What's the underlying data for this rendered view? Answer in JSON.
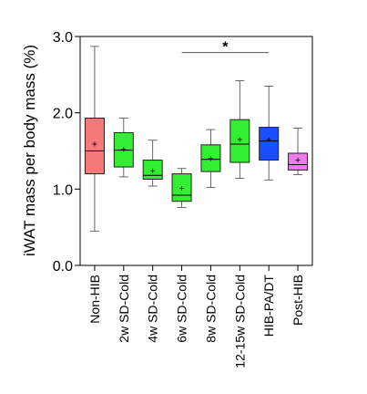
{
  "chart_data": {
    "type": "boxplot",
    "ylabel": "iWAT mass per body mass (%)",
    "ylim": [
      0.0,
      3.0
    ],
    "yticks": [
      "0.0",
      "1.0",
      "2.0",
      "3.0"
    ],
    "categories": [
      "Non-HIB",
      "2w SD-Cold",
      "4w SD-Cold",
      "6w SD-Cold",
      "8w SD-Cold",
      "12-15w SD-Cold",
      "HIB-PA/DT",
      "Post-HIB"
    ],
    "boxes": [
      {
        "min": 0.45,
        "q1": 1.2,
        "median": 1.5,
        "q3": 1.93,
        "max": 2.87,
        "mean": 1.59,
        "color": "#f47a7a"
      },
      {
        "min": 1.16,
        "q1": 1.29,
        "median": 1.51,
        "q3": 1.74,
        "max": 1.93,
        "mean": 1.52,
        "color": "#33ee33"
      },
      {
        "min": 1.04,
        "q1": 1.13,
        "median": 1.18,
        "q3": 1.38,
        "max": 1.64,
        "mean": 1.24,
        "color": "#33ee33"
      },
      {
        "min": 0.76,
        "q1": 0.84,
        "median": 0.92,
        "q3": 1.2,
        "max": 1.27,
        "mean": 1.01,
        "color": "#33ee33"
      },
      {
        "min": 1.02,
        "q1": 1.23,
        "median": 1.39,
        "q3": 1.58,
        "max": 1.78,
        "mean": 1.4,
        "color": "#33ee33"
      },
      {
        "min": 1.14,
        "q1": 1.35,
        "median": 1.59,
        "q3": 1.91,
        "max": 2.42,
        "mean": 1.65,
        "color": "#33ee33"
      },
      {
        "min": 1.12,
        "q1": 1.38,
        "median": 1.63,
        "q3": 1.81,
        "max": 2.35,
        "mean": 1.65,
        "color": "#1a4fff"
      },
      {
        "min": 1.19,
        "q1": 1.25,
        "median": 1.32,
        "q3": 1.47,
        "max": 1.8,
        "mean": 1.38,
        "color": "#ee7aee"
      }
    ],
    "annotations": [
      {
        "text": "*",
        "from_category": "6w SD-Cold",
        "to_category": "HIB-PA/DT",
        "y": 2.79
      }
    ]
  }
}
